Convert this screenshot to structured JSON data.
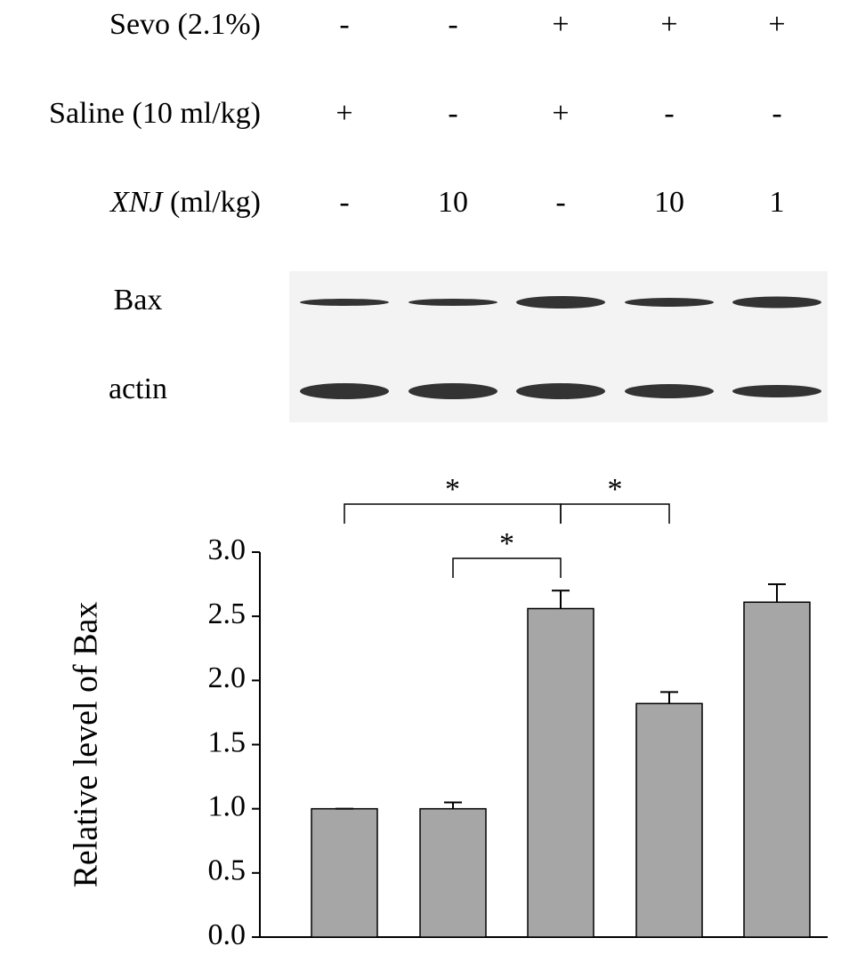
{
  "treatments": {
    "rows": [
      {
        "label": [
          "Sevo (2.1%)"
        ],
        "values": [
          "-",
          "-",
          "+",
          "+",
          "+"
        ]
      },
      {
        "label": [
          "Saline (10 ml/kg)"
        ],
        "values": [
          "+",
          "-",
          "+",
          "-",
          "-"
        ]
      },
      {
        "label": [
          "XNJ",
          " (ml/kg)"
        ],
        "values": [
          "-",
          "10",
          "-",
          "10",
          "1"
        ]
      }
    ]
  },
  "blot": {
    "rows": [
      "Bax",
      "actin"
    ]
  },
  "chart_data": {
    "type": "bar",
    "y_label": "Relative level of  Bax",
    "categories": [
      null,
      null,
      null,
      null,
      null
    ],
    "values": [
      1.0,
      1.0,
      2.56,
      1.82,
      2.61
    ],
    "errors": [
      0,
      0.05,
      0.14,
      0.09,
      0.14
    ],
    "color": "#a6a6a6",
    "ylim": [
      0,
      3
    ],
    "yticks": [
      {
        "value": 0,
        "label": "0.0"
      },
      0.5,
      {
        "value": 1,
        "label": "1.0"
      },
      1.5,
      {
        "value": 2,
        "label": "2.0"
      },
      2.5,
      {
        "value": 3,
        "label": "3.0"
      }
    ],
    "comparisons": [
      {
        "pair": [
          0,
          2
        ],
        "label": "*"
      },
      {
        "pair": [
          2,
          3
        ],
        "label": "*"
      },
      {
        "pair": [
          1,
          2
        ],
        "label": "*"
      }
    ]
  }
}
